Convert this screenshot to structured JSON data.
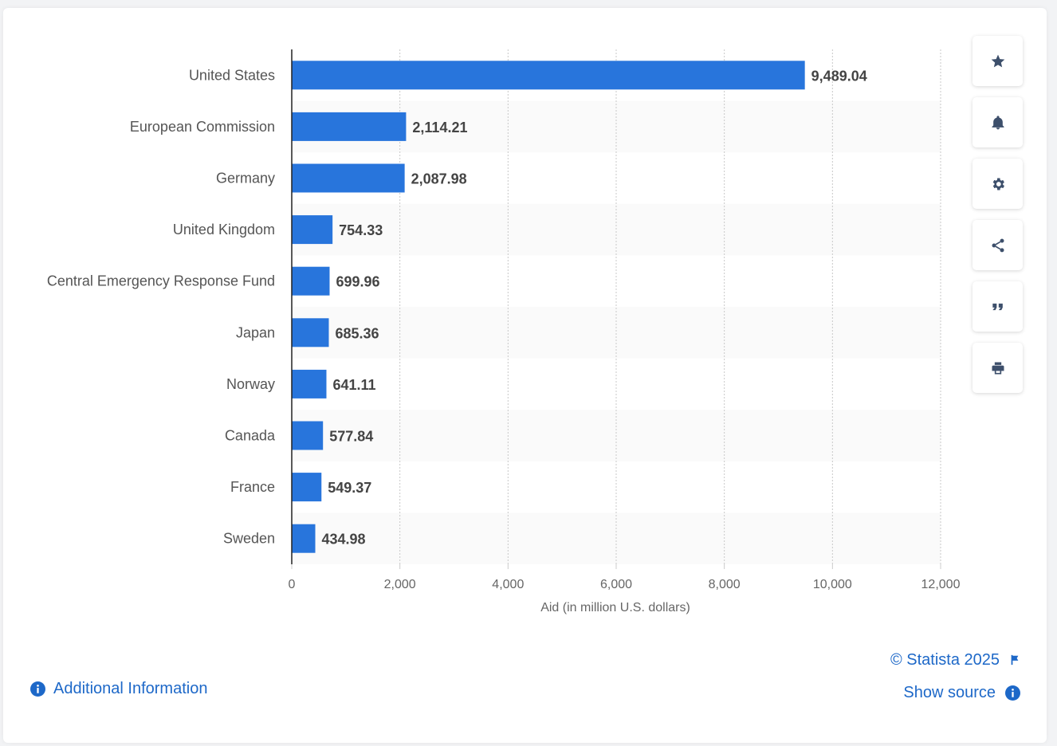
{
  "chart_data": {
    "type": "bar",
    "orientation": "horizontal",
    "categories": [
      "United States",
      "European Commission",
      "Germany",
      "United Kingdom",
      "Central Emergency Response Fund",
      "Japan",
      "Norway",
      "Canada",
      "France",
      "Sweden"
    ],
    "values": [
      9489.04,
      2114.21,
      2087.98,
      754.33,
      699.96,
      685.36,
      641.11,
      577.84,
      549.37,
      434.98
    ],
    "value_labels": [
      "9,489.04",
      "2,114.21",
      "2,087.98",
      "754.33",
      "699.96",
      "685.36",
      "641.11",
      "577.84",
      "549.37",
      "434.98"
    ],
    "xlabel": "Aid (in million U.S. dollars)",
    "xlim": [
      0,
      12000
    ],
    "xticks": [
      0,
      2000,
      4000,
      6000,
      8000,
      10000,
      12000
    ],
    "xtick_labels": [
      "0",
      "2,000",
      "4,000",
      "6,000",
      "8,000",
      "10,000",
      "12,000"
    ],
    "grid": true,
    "bar_color": "#2875dc"
  },
  "sidebar": {
    "buttons": [
      {
        "icon": "star-icon"
      },
      {
        "icon": "bell-icon"
      },
      {
        "icon": "gear-icon"
      },
      {
        "icon": "share-icon"
      },
      {
        "icon": "quote-icon"
      },
      {
        "icon": "print-icon"
      }
    ]
  },
  "footer": {
    "copyright": "© Statista 2025",
    "show_source": "Show source",
    "additional_info": "Additional Information"
  }
}
